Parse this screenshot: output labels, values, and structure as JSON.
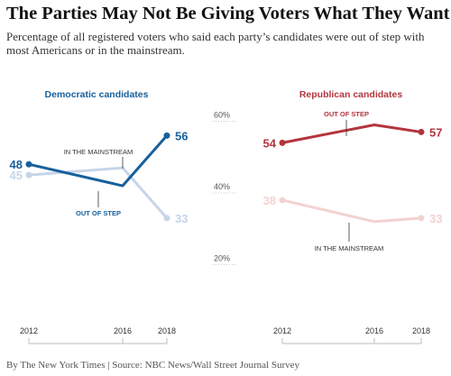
{
  "headline": "The Parties May Not Be Giving Voters What They Want",
  "subhead": "Percentage of all registered voters who said each party’s candidates were out of step with most Americans or in the mainstream.",
  "credit": "By The New York Times | Source: NBC News/Wall Street Journal Survey",
  "colors": {
    "dem_dark": "#17609c",
    "dem_light": "#c6d5e8",
    "rep_dark": "#b3353c",
    "rep_light": "#f2d3d1",
    "axis": "#bbbbbb",
    "text": "#333333"
  },
  "y_axis": {
    "ticks": [
      "60%",
      "40%",
      "20%"
    ],
    "tick_values": [
      60,
      40,
      20
    ]
  },
  "chart_data": [
    {
      "type": "line",
      "title": "Democratic candidates",
      "x": [
        "2012",
        "2016",
        "2018"
      ],
      "ylim": [
        20,
        60
      ],
      "series": [
        {
          "name": "OUT OF STEP",
          "values": [
            48,
            42,
            56
          ],
          "labels": [
            "48",
            "",
            "56"
          ],
          "color": "#17609c"
        },
        {
          "name": "IN THE MAINSTREAM",
          "values": [
            45,
            47,
            33
          ],
          "labels": [
            "45",
            "",
            "33"
          ],
          "color": "#c6d5e8"
        }
      ]
    },
    {
      "type": "line",
      "title": "Republican candidates",
      "x": [
        "2012",
        "2016",
        "2018"
      ],
      "ylim": [
        20,
        60
      ],
      "series": [
        {
          "name": "OUT OF STEP",
          "values": [
            54,
            59,
            57
          ],
          "labels": [
            "54",
            "",
            "57"
          ],
          "color": "#b3353c"
        },
        {
          "name": "IN THE MAINSTREAM",
          "values": [
            38,
            32,
            33
          ],
          "labels": [
            "38",
            "",
            "33"
          ],
          "color": "#f2d3d1"
        }
      ]
    }
  ]
}
